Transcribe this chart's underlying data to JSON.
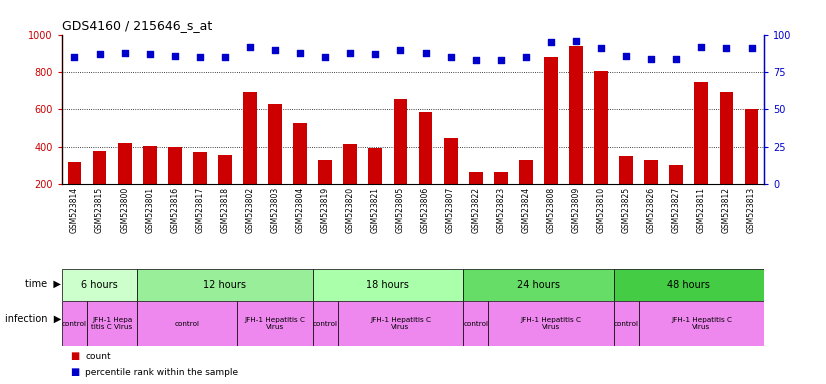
{
  "title": "GDS4160 / 215646_s_at",
  "samples": [
    "GSM523814",
    "GSM523815",
    "GSM523800",
    "GSM523801",
    "GSM523816",
    "GSM523817",
    "GSM523818",
    "GSM523802",
    "GSM523803",
    "GSM523804",
    "GSM523819",
    "GSM523820",
    "GSM523821",
    "GSM523805",
    "GSM523806",
    "GSM523807",
    "GSM523822",
    "GSM523823",
    "GSM523824",
    "GSM523808",
    "GSM523809",
    "GSM523810",
    "GSM523825",
    "GSM523826",
    "GSM523827",
    "GSM523811",
    "GSM523812",
    "GSM523813"
  ],
  "counts": [
    320,
    380,
    420,
    405,
    398,
    375,
    358,
    695,
    628,
    530,
    332,
    418,
    395,
    658,
    585,
    448,
    268,
    265,
    332,
    880,
    938,
    808,
    352,
    332,
    305,
    745,
    695,
    605
  ],
  "percentiles": [
    85,
    87,
    88,
    87,
    86,
    85,
    85,
    92,
    90,
    88,
    85,
    88,
    87,
    90,
    88,
    85,
    83,
    83,
    85,
    95,
    96,
    91,
    86,
    84,
    84,
    92,
    91,
    91
  ],
  "bar_color": "#cc0000",
  "dot_color": "#0000cc",
  "ylim_left": [
    200,
    1000
  ],
  "ylim_right": [
    0,
    100
  ],
  "yticks_left": [
    200,
    400,
    600,
    800,
    1000
  ],
  "yticks_right": [
    0,
    25,
    50,
    75,
    100
  ],
  "grid_values": [
    400,
    600,
    800
  ],
  "time_groups": [
    {
      "label": "6 hours",
      "start": 0,
      "end": 3,
      "color": "#ccffcc"
    },
    {
      "label": "12 hours",
      "start": 3,
      "end": 10,
      "color": "#99ee99"
    },
    {
      "label": "18 hours",
      "start": 10,
      "end": 16,
      "color": "#aaffaa"
    },
    {
      "label": "24 hours",
      "start": 16,
      "end": 22,
      "color": "#66dd66"
    },
    {
      "label": "48 hours",
      "start": 22,
      "end": 28,
      "color": "#44cc44"
    }
  ],
  "infection_groups": [
    {
      "label": "control",
      "start": 0,
      "end": 1
    },
    {
      "label": "JFH-1 Hepa\ntitis C Virus",
      "start": 1,
      "end": 3
    },
    {
      "label": "control",
      "start": 3,
      "end": 7
    },
    {
      "label": "JFH-1 Hepatitis C\nVirus",
      "start": 7,
      "end": 10
    },
    {
      "label": "control",
      "start": 10,
      "end": 11
    },
    {
      "label": "JFH-1 Hepatitis C\nVirus",
      "start": 11,
      "end": 16
    },
    {
      "label": "control",
      "start": 16,
      "end": 17
    },
    {
      "label": "JFH-1 Hepatitis C\nVirus",
      "start": 17,
      "end": 22
    },
    {
      "label": "control",
      "start": 22,
      "end": 23
    },
    {
      "label": "JFH-1 Hepatitis C\nVirus",
      "start": 23,
      "end": 28
    }
  ],
  "infection_color": "#ee88ee",
  "bg_color": "#ffffff",
  "plot_bg_color": "#ffffff",
  "legend_count_color": "#cc0000",
  "legend_pct_color": "#0000cc",
  "n": 28
}
